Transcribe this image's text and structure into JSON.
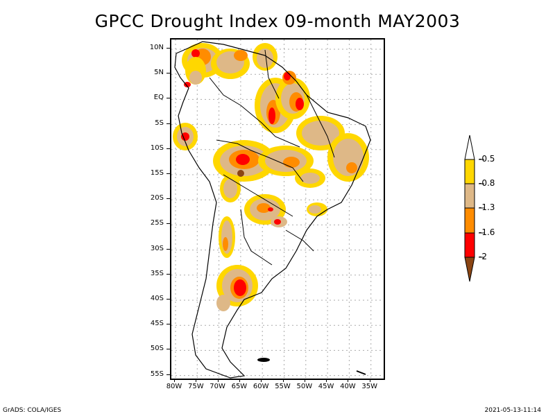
{
  "title": "GPCC Drought Index 09-month MAY2003",
  "map": {
    "region": "South America",
    "projection": "latlon",
    "lon_range": [
      "80W",
      "30W"
    ],
    "lat_range": [
      "56S",
      "12N"
    ],
    "lat_labels": [
      "10N",
      "5N",
      "EQ",
      "5S",
      "10S",
      "15S",
      "20S",
      "25S",
      "30S",
      "35S",
      "40S",
      "45S",
      "50S",
      "55S"
    ],
    "lon_labels": [
      "80W",
      "75W",
      "70W",
      "65W",
      "60W",
      "55W",
      "50W",
      "45W",
      "40W",
      "35W"
    ],
    "grid": "dotted"
  },
  "colorbar": {
    "levels": [
      "-0.5",
      "-0.8",
      "-1.3",
      "-1.6",
      "-2"
    ],
    "colors": [
      {
        "name": "above -0.5",
        "hex": "#ffffff"
      },
      {
        "name": "-0.8 to -0.5",
        "hex": "#ffd700"
      },
      {
        "name": "-1.3 to -0.8",
        "hex": "#deb887"
      },
      {
        "name": "-1.6 to -1.3",
        "hex": "#ff8c00"
      },
      {
        "name": "-2 to -1.6",
        "hex": "#ff0000"
      },
      {
        "name": "below -2",
        "hex": "#8b4513"
      }
    ]
  },
  "footer": {
    "left": "GrADS: COLA/IGES",
    "right": "2021-05-13-11:14"
  }
}
